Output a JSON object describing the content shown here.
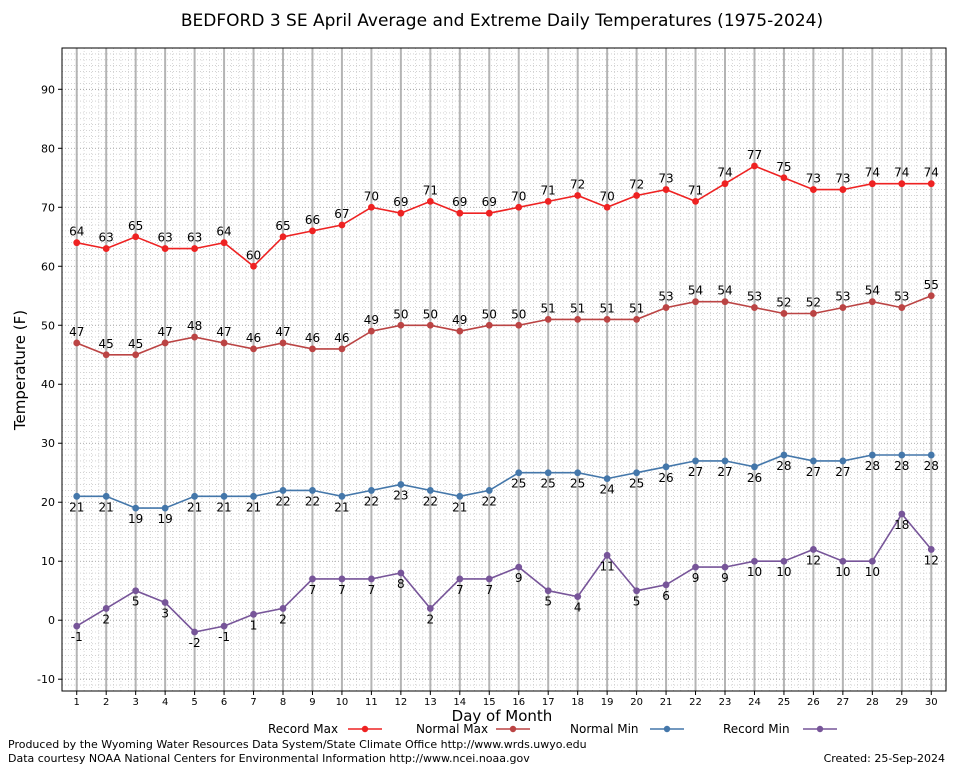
{
  "chart_data": {
    "type": "line",
    "title": "BEDFORD 3 SE April Average and Extreme Daily Temperatures (1975-2024)",
    "xlabel": "Day of Month",
    "ylabel": "Temperature (F)",
    "xlim": [
      0.5,
      30.5
    ],
    "ylim": [
      -12,
      97
    ],
    "y_ticks": [
      -10,
      0,
      10,
      20,
      30,
      40,
      50,
      60,
      70,
      80,
      90
    ],
    "grid": true,
    "legend_position": "bottom",
    "x": [
      1,
      2,
      3,
      4,
      5,
      6,
      7,
      8,
      9,
      10,
      11,
      12,
      13,
      14,
      15,
      16,
      17,
      18,
      19,
      20,
      21,
      22,
      23,
      24,
      25,
      26,
      27,
      28,
      29,
      30
    ],
    "series": [
      {
        "name": "Record Max",
        "color": "#ee2222",
        "label_position": "above",
        "values": [
          64,
          63,
          65,
          63,
          63,
          64,
          60,
          65,
          66,
          67,
          70,
          69,
          71,
          69,
          69,
          70,
          71,
          72,
          70,
          72,
          73,
          71,
          74,
          77,
          75,
          73,
          73,
          74,
          74,
          74
        ]
      },
      {
        "name": "Normal Max",
        "color": "#bb4444",
        "label_position": "above",
        "values": [
          47,
          45,
          45,
          47,
          48,
          47,
          46,
          47,
          46,
          46,
          49,
          50,
          50,
          49,
          50,
          50,
          51,
          51,
          51,
          51,
          53,
          54,
          54,
          53,
          52,
          52,
          53,
          54,
          53,
          55
        ]
      },
      {
        "name": "Normal Min",
        "color": "#4477aa",
        "label_position": "below",
        "values": [
          21,
          21,
          19,
          19,
          21,
          21,
          21,
          22,
          22,
          21,
          22,
          23,
          22,
          21,
          22,
          25,
          25,
          25,
          24,
          25,
          26,
          27,
          27,
          26,
          28,
          27,
          27,
          28,
          28,
          28
        ]
      },
      {
        "name": "Record Min",
        "color": "#775599",
        "label_position": "below",
        "values": [
          -1,
          2,
          5,
          3,
          -2,
          -1,
          1,
          2,
          7,
          7,
          7,
          8,
          2,
          7,
          7,
          9,
          5,
          4,
          11,
          5,
          6,
          9,
          9,
          10,
          10,
          12,
          10,
          10,
          18,
          12
        ]
      }
    ]
  },
  "footer": {
    "credit_line_1": "Produced by the Wyoming Water Resources Data System/State Climate Office http://www.wrds.uwyo.edu",
    "credit_line_2": "Data courtesy NOAA National Centers for Environmental Information http://www.ncei.noaa.gov",
    "created": "Created:  25-Sep-2024"
  }
}
